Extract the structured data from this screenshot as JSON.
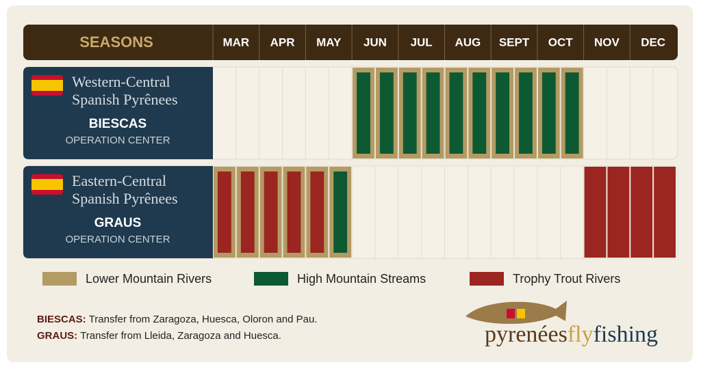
{
  "header": {
    "title": "SEASONS",
    "months": [
      "MAR",
      "APR",
      "MAY",
      "JUN",
      "JUL",
      "AUG",
      "SEPT",
      "OCT",
      "NOV",
      "DEC"
    ]
  },
  "rows": [
    {
      "region": [
        "Western-Central",
        "Spanish Pyrênees"
      ],
      "center": "BIESCAS",
      "subtitle": "OPERATION CENTER",
      "cells": [
        null,
        null,
        null,
        null,
        null,
        null,
        [
          0,
          1
        ],
        [
          0,
          1
        ],
        [
          0,
          1
        ],
        [
          0,
          1
        ],
        [
          0,
          1
        ],
        [
          0,
          1
        ],
        [
          0,
          1
        ],
        [
          0,
          1
        ],
        [
          0,
          1
        ],
        [
          0,
          1
        ],
        null,
        null,
        null,
        null
      ]
    },
    {
      "region": [
        "Eastern-Central",
        "Spanish Pyrênees"
      ],
      "center": "GRAUS",
      "subtitle": "OPERATION CENTER",
      "cells": [
        [
          0,
          2
        ],
        [
          0,
          2
        ],
        [
          0,
          2
        ],
        [
          0,
          2
        ],
        [
          0,
          2
        ],
        [
          0,
          1
        ],
        null,
        null,
        null,
        null,
        null,
        null,
        null,
        null,
        null,
        null,
        [
          2
        ],
        [
          2
        ],
        [
          2
        ],
        [
          2
        ]
      ]
    }
  ],
  "legend": [
    {
      "label": "Lower Mountain Rivers",
      "color": "#b49a63"
    },
    {
      "label": "High Mountain Streams",
      "color": "#0d5a32"
    },
    {
      "label": "Trophy Trout Rivers",
      "color": "#9b2520"
    }
  ],
  "notes": [
    {
      "label": "BIESCAS:",
      "text": "Transfer from Zaragoza, Huesca, Oloron and Pau."
    },
    {
      "label": "GRAUS:",
      "text": "Transfer from Lleida, Zaragoza and Huesca."
    }
  ],
  "logo": [
    "pyrenées",
    "fly",
    "fishing"
  ]
}
